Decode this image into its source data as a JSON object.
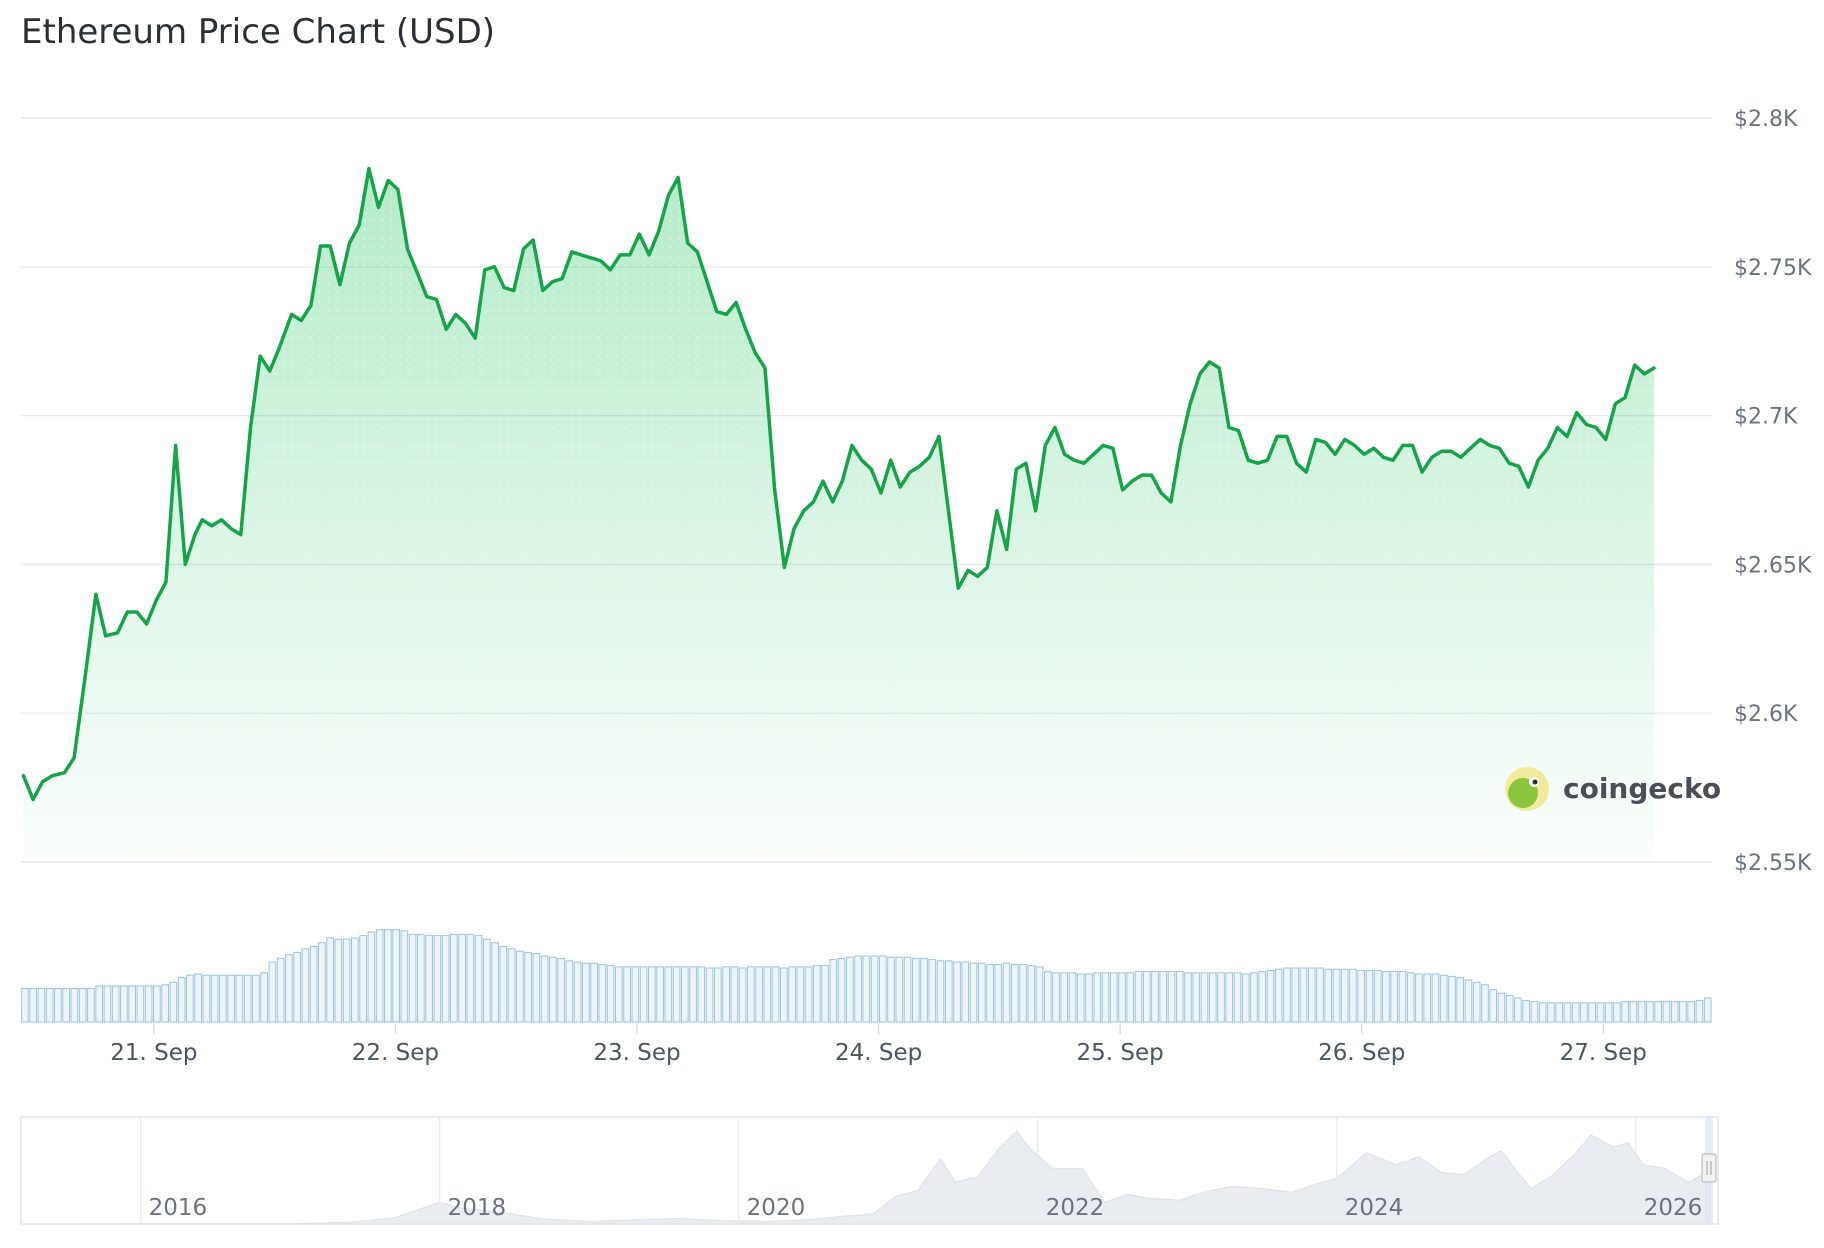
{
  "chart_data": {
    "type": "line",
    "title": "Ethereum Price Chart (USD)",
    "currency": "USD",
    "ylim": [
      2550,
      2800
    ],
    "y_ticks": [
      {
        "value": 2800,
        "label": "$2.8K"
      },
      {
        "value": 2750,
        "label": "$2.75K"
      },
      {
        "value": 2700,
        "label": "$2.7K"
      },
      {
        "value": 2650,
        "label": "$2.65K"
      },
      {
        "value": 2600,
        "label": "$2.6K"
      },
      {
        "value": 2550,
        "label": "$2.55K"
      }
    ],
    "x_range": [
      20.45,
      27.45
    ],
    "x_ticks": [
      {
        "value": 21,
        "label": "21. Sep"
      },
      {
        "value": 22,
        "label": "22. Sep"
      },
      {
        "value": 23,
        "label": "23. Sep"
      },
      {
        "value": 24,
        "label": "24. Sep"
      },
      {
        "value": 25,
        "label": "25. Sep"
      },
      {
        "value": 26,
        "label": "26. Sep"
      },
      {
        "value": 27,
        "label": "27. Sep"
      }
    ],
    "grid": true,
    "legend": "none",
    "line_color": "#16a34a",
    "fill_color": "#22c55e",
    "volume_color": "#9ec3dc",
    "price": [
      [
        20.46,
        2579
      ],
      [
        20.5,
        2571
      ],
      [
        20.54,
        2577
      ],
      [
        20.58,
        2579
      ],
      [
        20.63,
        2580
      ],
      [
        20.67,
        2585
      ],
      [
        20.72,
        2615
      ],
      [
        20.76,
        2640
      ],
      [
        20.8,
        2626
      ],
      [
        20.85,
        2627
      ],
      [
        20.89,
        2634
      ],
      [
        20.93,
        2634
      ],
      [
        20.97,
        2630
      ],
      [
        21.01,
        2638
      ],
      [
        21.05,
        2644
      ],
      [
        21.09,
        2690
      ],
      [
        21.13,
        2650
      ],
      [
        21.17,
        2660
      ],
      [
        21.2,
        2665
      ],
      [
        21.24,
        2663
      ],
      [
        21.28,
        2665
      ],
      [
        21.32,
        2662
      ],
      [
        21.36,
        2660
      ],
      [
        21.4,
        2696
      ],
      [
        21.44,
        2720
      ],
      [
        21.48,
        2715
      ],
      [
        21.52,
        2723
      ],
      [
        21.57,
        2734
      ],
      [
        21.61,
        2732
      ],
      [
        21.65,
        2737
      ],
      [
        21.69,
        2757
      ],
      [
        21.73,
        2757
      ],
      [
        21.77,
        2744
      ],
      [
        21.81,
        2758
      ],
      [
        21.85,
        2764
      ],
      [
        21.89,
        2783
      ],
      [
        21.93,
        2770
      ],
      [
        21.97,
        2779
      ],
      [
        22.01,
        2776
      ],
      [
        22.05,
        2756
      ],
      [
        22.09,
        2748
      ],
      [
        22.13,
        2740
      ],
      [
        22.17,
        2739
      ],
      [
        22.21,
        2729
      ],
      [
        22.25,
        2734
      ],
      [
        22.29,
        2731
      ],
      [
        22.33,
        2726
      ],
      [
        22.37,
        2749
      ],
      [
        22.41,
        2750
      ],
      [
        22.45,
        2743
      ],
      [
        22.49,
        2742
      ],
      [
        22.53,
        2756
      ],
      [
        22.57,
        2759
      ],
      [
        22.61,
        2742
      ],
      [
        22.65,
        2745
      ],
      [
        22.69,
        2746
      ],
      [
        22.73,
        2755
      ],
      [
        22.77,
        2754
      ],
      [
        22.81,
        2753
      ],
      [
        22.85,
        2752
      ],
      [
        22.89,
        2749
      ],
      [
        22.93,
        2754
      ],
      [
        22.97,
        2754
      ],
      [
        23.01,
        2761
      ],
      [
        23.05,
        2754
      ],
      [
        23.09,
        2762
      ],
      [
        23.13,
        2774
      ],
      [
        23.17,
        2780
      ],
      [
        23.21,
        2758
      ],
      [
        23.25,
        2755
      ],
      [
        23.29,
        2745
      ],
      [
        23.33,
        2735
      ],
      [
        23.37,
        2734
      ],
      [
        23.41,
        2738
      ],
      [
        23.45,
        2729
      ],
      [
        23.49,
        2721
      ],
      [
        23.53,
        2716
      ],
      [
        23.57,
        2675
      ],
      [
        23.61,
        2649
      ],
      [
        23.65,
        2662
      ],
      [
        23.69,
        2668
      ],
      [
        23.73,
        2671
      ],
      [
        23.77,
        2678
      ],
      [
        23.81,
        2671
      ],
      [
        23.85,
        2678
      ],
      [
        23.89,
        2690
      ],
      [
        23.93,
        2685
      ],
      [
        23.97,
        2682
      ],
      [
        24.01,
        2674
      ],
      [
        24.05,
        2685
      ],
      [
        24.09,
        2676
      ],
      [
        24.13,
        2681
      ],
      [
        24.17,
        2683
      ],
      [
        24.21,
        2686
      ],
      [
        24.25,
        2693
      ],
      [
        24.33,
        2642
      ],
      [
        24.37,
        2648
      ],
      [
        24.41,
        2646
      ],
      [
        24.45,
        2649
      ],
      [
        24.49,
        2668
      ],
      [
        24.53,
        2655
      ],
      [
        24.57,
        2682
      ],
      [
        24.61,
        2684
      ],
      [
        24.65,
        2668
      ],
      [
        24.69,
        2690
      ],
      [
        24.73,
        2696
      ],
      [
        24.77,
        2687
      ],
      [
        24.81,
        2685
      ],
      [
        24.85,
        2684
      ],
      [
        24.89,
        2687
      ],
      [
        24.93,
        2690
      ],
      [
        24.97,
        2689
      ],
      [
        25.01,
        2675
      ],
      [
        25.05,
        2678
      ],
      [
        25.09,
        2680
      ],
      [
        25.13,
        2680
      ],
      [
        25.17,
        2674
      ],
      [
        25.21,
        2671
      ],
      [
        25.25,
        2690
      ],
      [
        25.29,
        2704
      ],
      [
        25.33,
        2714
      ],
      [
        25.37,
        2718
      ],
      [
        25.41,
        2716
      ],
      [
        25.45,
        2696
      ],
      [
        25.49,
        2695
      ],
      [
        25.53,
        2685
      ],
      [
        25.57,
        2684
      ],
      [
        25.61,
        2685
      ],
      [
        25.65,
        2693
      ],
      [
        25.69,
        2693
      ],
      [
        25.73,
        2684
      ],
      [
        25.77,
        2681
      ],
      [
        25.81,
        2692
      ],
      [
        25.85,
        2691
      ],
      [
        25.89,
        2687
      ],
      [
        25.93,
        2692
      ],
      [
        25.97,
        2690
      ],
      [
        26.01,
        2687
      ],
      [
        26.05,
        2689
      ],
      [
        26.09,
        2686
      ],
      [
        26.13,
        2685
      ],
      [
        26.17,
        2690
      ],
      [
        26.21,
        2690
      ],
      [
        26.25,
        2681
      ],
      [
        26.29,
        2686
      ],
      [
        26.33,
        2688
      ],
      [
        26.37,
        2688
      ],
      [
        26.41,
        2686
      ],
      [
        26.45,
        2689
      ],
      [
        26.49,
        2692
      ],
      [
        26.53,
        2690
      ],
      [
        26.57,
        2689
      ],
      [
        26.61,
        2684
      ],
      [
        26.65,
        2683
      ],
      [
        26.69,
        2676
      ],
      [
        26.73,
        2685
      ],
      [
        26.77,
        2689
      ],
      [
        26.81,
        2696
      ],
      [
        26.85,
        2693
      ],
      [
        26.89,
        2701
      ],
      [
        26.93,
        2697
      ],
      [
        26.97,
        2696
      ],
      [
        27.01,
        2692
      ],
      [
        27.05,
        2704
      ],
      [
        27.09,
        2706
      ],
      [
        27.13,
        2717
      ],
      [
        27.17,
        2714
      ],
      [
        27.21,
        2716
      ]
    ],
    "volume_scale_max": 100,
    "volume": [
      28,
      28,
      28,
      28,
      28,
      28,
      28,
      28,
      28,
      30,
      30,
      30,
      30,
      30,
      30,
      30,
      30,
      31,
      33,
      37,
      39,
      40,
      39,
      39,
      39,
      39,
      39,
      39,
      39,
      41,
      50,
      53,
      56,
      58,
      61,
      63,
      66,
      70,
      69,
      69,
      70,
      72,
      75,
      77,
      77,
      77,
      76,
      73,
      73,
      72,
      72,
      72,
      73,
      73,
      73,
      72,
      69,
      66,
      63,
      61,
      59,
      58,
      57,
      55,
      54,
      53,
      51,
      50,
      49,
      49,
      48,
      47,
      46,
      46,
      46,
      46,
      46,
      46,
      46,
      46,
      46,
      46,
      46,
      45,
      45,
      46,
      46,
      45,
      46,
      46,
      46,
      46,
      45,
      46,
      46,
      46,
      47,
      47,
      52,
      53,
      54,
      55,
      55,
      55,
      55,
      54,
      54,
      54,
      53,
      53,
      52,
      51,
      51,
      50,
      50,
      49,
      49,
      48,
      48,
      49,
      48,
      48,
      47,
      46,
      42,
      41,
      41,
      41,
      40,
      40,
      41,
      41,
      41,
      41,
      41,
      42,
      42,
      42,
      42,
      42,
      42,
      41,
      41,
      41,
      41,
      41,
      41,
      41,
      40,
      41,
      42,
      43,
      44,
      45,
      45,
      45,
      45,
      45,
      44,
      44,
      44,
      44,
      43,
      43,
      43,
      42,
      42,
      42,
      41,
      40,
      40,
      40,
      39,
      38,
      37,
      35,
      33,
      31,
      27,
      24,
      22,
      20,
      18,
      17,
      16,
      16,
      16,
      16,
      16,
      16,
      16,
      16,
      16,
      16,
      17,
      17,
      17,
      17,
      17,
      17,
      17,
      17,
      17,
      18,
      20
    ],
    "navigator": {
      "x_range": [
        2015.2,
        2026.55
      ],
      "x_ticks": [
        {
          "value": 2016,
          "label": "2016"
        },
        {
          "value": 2018,
          "label": "2018"
        },
        {
          "value": 2020,
          "label": "2020"
        },
        {
          "value": 2022,
          "label": "2022"
        },
        {
          "value": 2024,
          "label": "2024"
        },
        {
          "value": 2026,
          "label": "2026"
        }
      ],
      "ylim": [
        0,
        5000
      ],
      "series": [
        [
          2015.6,
          2
        ],
        [
          2016.0,
          5
        ],
        [
          2016.5,
          12
        ],
        [
          2017.0,
          10
        ],
        [
          2017.4,
          90
        ],
        [
          2017.7,
          320
        ],
        [
          2018.0,
          1100
        ],
        [
          2018.15,
          800
        ],
        [
          2018.4,
          600
        ],
        [
          2018.7,
          250
        ],
        [
          2019.0,
          130
        ],
        [
          2019.4,
          230
        ],
        [
          2019.6,
          280
        ],
        [
          2019.9,
          160
        ],
        [
          2020.2,
          140
        ],
        [
          2020.5,
          230
        ],
        [
          2020.7,
          400
        ],
        [
          2020.9,
          500
        ],
        [
          2021.05,
          1400
        ],
        [
          2021.2,
          1700
        ],
        [
          2021.35,
          3300
        ],
        [
          2021.45,
          2100
        ],
        [
          2021.6,
          2400
        ],
        [
          2021.75,
          3900
        ],
        [
          2021.86,
          4700
        ],
        [
          2021.95,
          3800
        ],
        [
          2022.1,
          2800
        ],
        [
          2022.3,
          2800
        ],
        [
          2022.45,
          1100
        ],
        [
          2022.6,
          1500
        ],
        [
          2022.75,
          1300
        ],
        [
          2022.95,
          1200
        ],
        [
          2023.1,
          1600
        ],
        [
          2023.3,
          1900
        ],
        [
          2023.5,
          1800
        ],
        [
          2023.7,
          1600
        ],
        [
          2023.85,
          2000
        ],
        [
          2024.0,
          2300
        ],
        [
          2024.2,
          3600
        ],
        [
          2024.4,
          3000
        ],
        [
          2024.55,
          3400
        ],
        [
          2024.7,
          2600
        ],
        [
          2024.85,
          2500
        ],
        [
          2025.0,
          3300
        ],
        [
          2025.1,
          3700
        ],
        [
          2025.2,
          2700
        ],
        [
          2025.3,
          1800
        ],
        [
          2025.45,
          2500
        ],
        [
          2025.6,
          3600
        ],
        [
          2025.7,
          4500
        ],
        [
          2025.85,
          3900
        ],
        [
          2025.95,
          4100
        ],
        [
          2026.05,
          3000
        ],
        [
          2026.2,
          2800
        ],
        [
          2026.35,
          2100
        ],
        [
          2026.5,
          2700
        ]
      ]
    }
  },
  "brand": {
    "name": "coingecko"
  }
}
